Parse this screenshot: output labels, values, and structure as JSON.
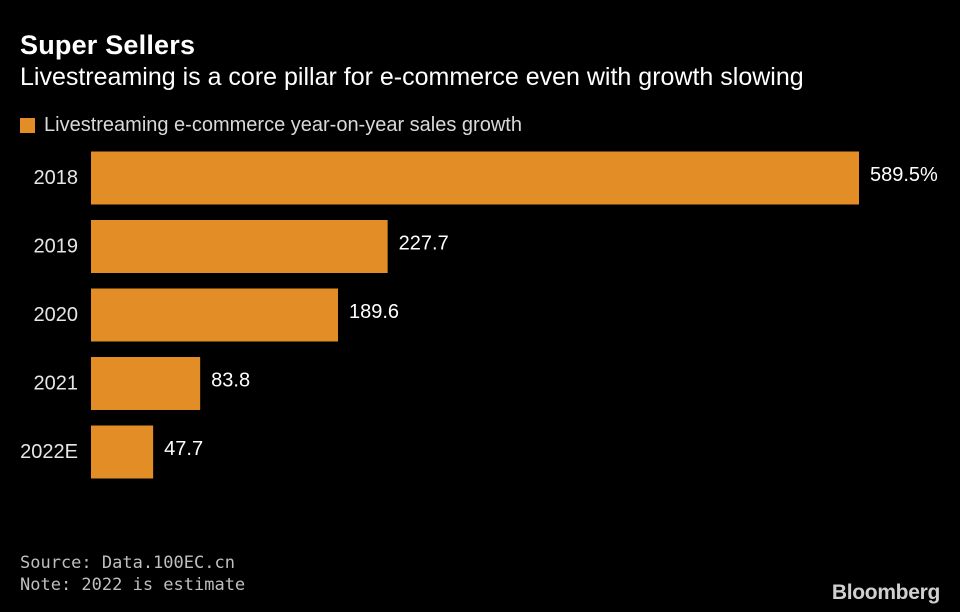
{
  "header": {
    "title": "Super Sellers",
    "subtitle": "Livestreaming is a core pillar for e-commerce even with growth slowing"
  },
  "legend": {
    "label": "Livestreaming e-commerce year-on-year sales growth"
  },
  "colors": {
    "bar": "#E28D26",
    "background": "#000000"
  },
  "chart_data": {
    "type": "bar",
    "orientation": "horizontal",
    "title": "Super Sellers",
    "subtitle": "Livestreaming is a core pillar for e-commerce even with growth slowing",
    "categories": [
      "2018",
      "2019",
      "2020",
      "2021",
      "2022E"
    ],
    "values": [
      589.5,
      227.7,
      189.6,
      83.8,
      47.7
    ],
    "value_labels": [
      "589.5%",
      "227.7",
      "189.6",
      "83.8",
      "47.7"
    ],
    "series": [
      {
        "name": "Livestreaming e-commerce year-on-year sales growth",
        "values": [
          589.5,
          227.7,
          189.6,
          83.8,
          47.7
        ]
      }
    ],
    "xlabel": "",
    "ylabel": "",
    "xlim": [
      0,
      589.5
    ],
    "unit": "%",
    "grid": false,
    "legend_position": "top-left"
  },
  "footer": {
    "source": "Source: Data.100EC.cn",
    "note": "Note: 2022 is estimate",
    "brand": "Bloomberg"
  }
}
